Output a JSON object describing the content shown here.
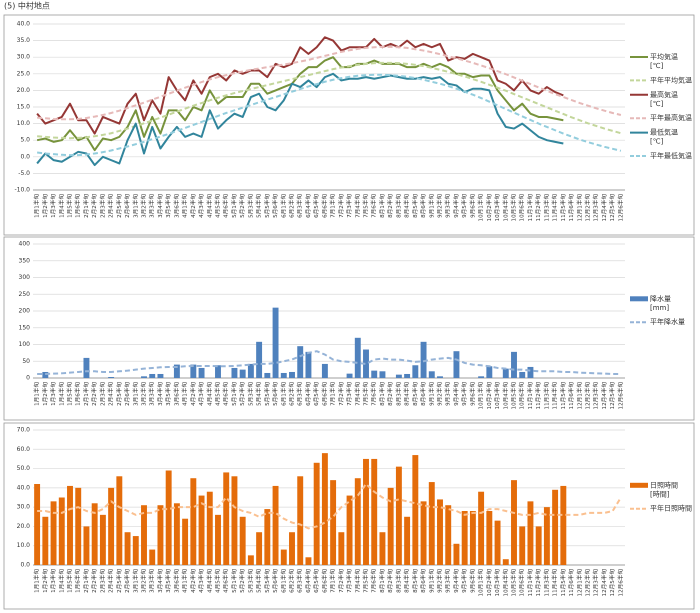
{
  "title": "(5) 中村地点",
  "chart_data": [
    {
      "type": "line",
      "categories": [
        "1月1半旬",
        "1月2半旬",
        "1月3半旬",
        "1月4半旬",
        "1月5半旬",
        "1月6半旬",
        "2月1半旬",
        "2月2半旬",
        "2月3半旬",
        "2月4半旬",
        "2月5半旬",
        "2月6半旬",
        "3月1半旬",
        "3月2半旬",
        "3月3半旬",
        "3月4半旬",
        "3月5半旬",
        "3月6半旬",
        "4月1半旬",
        "4月2半旬",
        "4月3半旬",
        "4月4半旬",
        "4月5半旬",
        "4月6半旬",
        "5月1半旬",
        "5月2半旬",
        "5月3半旬",
        "5月4半旬",
        "5月5半旬",
        "5月6半旬",
        "6月1半旬",
        "6月2半旬",
        "6月3半旬",
        "6月4半旬",
        "6月5半旬",
        "6月6半旬",
        "7月1半旬",
        "7月2半旬",
        "7月3半旬",
        "7月4半旬",
        "7月5半旬",
        "7月6半旬",
        "8月1半旬",
        "8月2半旬",
        "8月3半旬",
        "8月4半旬",
        "8月5半旬",
        "8月6半旬",
        "9月1半旬",
        "9月2半旬",
        "9月3半旬",
        "9月4半旬",
        "9月5半旬",
        "9月6半旬",
        "10月1半旬",
        "10月2半旬",
        "10月3半旬",
        "10月4半旬",
        "10月5半旬",
        "10月6半旬",
        "11月1半旬",
        "11月2半旬",
        "11月3半旬",
        "11月4半旬",
        "11月5半旬",
        "11月6半旬",
        "12月1半旬",
        "12月2半旬",
        "12月3半旬",
        "12月4半旬",
        "12月5半旬",
        "12月6半旬"
      ],
      "ylim": [
        -10,
        40
      ],
      "yticks": [
        {
          "value": -10,
          "label": "-10.0"
        },
        {
          "value": -5,
          "label": "-5.0"
        },
        {
          "value": 0,
          "label": "0.0"
        },
        {
          "value": 5,
          "label": "5.0"
        },
        {
          "value": 10,
          "label": "10.0"
        },
        {
          "value": 15,
          "label": "15.0"
        },
        {
          "value": 20,
          "label": "20.0"
        },
        {
          "value": 25,
          "label": "25.0"
        },
        {
          "value": 30,
          "label": "30.0"
        },
        {
          "value": 35,
          "label": "35.0"
        },
        {
          "value": 40,
          "label": "40.0"
        }
      ],
      "grid": true,
      "series": [
        {
          "name": "平均気温",
          "unit": "[℃]",
          "type": "line",
          "color": "#77933c",
          "dashed": false,
          "values": [
            5,
            5.5,
            4.5,
            5,
            8,
            5,
            6,
            2,
            5.5,
            5,
            6,
            9,
            14,
            6,
            12,
            7,
            14,
            14,
            11,
            15,
            14,
            20,
            16,
            18,
            18,
            18,
            22,
            22,
            19,
            20,
            21,
            22,
            25,
            27,
            27,
            29,
            30,
            27,
            27,
            28,
            28,
            29,
            28,
            28,
            28,
            27,
            27,
            28,
            27,
            28,
            27,
            25,
            25,
            24,
            24.5,
            24.5,
            20,
            17,
            14,
            16,
            13,
            12,
            12,
            11.5,
            11,
            null,
            null,
            null,
            null,
            null,
            null,
            null
          ]
        },
        {
          "name": "平年平均気温",
          "type": "line",
          "color": "#c3d69b",
          "dashed": true,
          "values": [
            6.2,
            6.0,
            5.8,
            5.7,
            5.6,
            5.7,
            5.9,
            6.2,
            6.6,
            7.1,
            7.8,
            8.5,
            9.3,
            10.1,
            10.9,
            11.8,
            12.7,
            13.6,
            14.5,
            15.4,
            16.2,
            17.0,
            17.8,
            18.5,
            19.2,
            19.8,
            20.4,
            21.0,
            21.6,
            22.2,
            22.8,
            23.4,
            24.0,
            24.6,
            25.2,
            25.8,
            26.4,
            26.9,
            27.3,
            27.7,
            28.0,
            28.2,
            28.3,
            28.3,
            28.2,
            28.0,
            27.7,
            27.3,
            26.8,
            26.2,
            25.6,
            24.9,
            24.2,
            23.4,
            22.6,
            21.7,
            20.8,
            19.9,
            18.9,
            17.9,
            16.9,
            15.9,
            14.9,
            13.9,
            12.9,
            11.9,
            11.0,
            10.1,
            9.3,
            8.5,
            7.8,
            7.1
          ]
        },
        {
          "name": "最高気温",
          "unit": "[℃]",
          "type": "line",
          "color": "#953735",
          "dashed": false,
          "values": [
            13,
            10,
            11,
            12,
            16,
            11,
            11,
            7,
            12,
            11,
            10,
            16,
            19,
            11,
            17,
            13,
            24,
            20,
            17,
            23,
            19,
            24,
            25,
            23,
            26,
            25,
            26,
            26,
            24,
            28,
            27,
            28,
            33,
            31,
            33,
            36,
            35,
            32,
            33,
            33,
            33,
            35.5,
            33,
            34,
            33,
            35,
            33,
            34,
            33,
            34,
            29,
            30,
            29.5,
            31,
            30,
            29,
            23,
            22,
            20,
            23,
            20,
            19,
            21,
            19.5,
            18.5,
            null,
            null,
            null,
            null,
            null,
            null,
            null
          ]
        },
        {
          "name": "平年最高気温",
          "type": "line",
          "color": "#e6b9b8",
          "dashed": true,
          "values": [
            11.8,
            11.6,
            11.4,
            11.3,
            11.3,
            11.4,
            11.7,
            12.1,
            12.6,
            13.2,
            13.9,
            14.7,
            15.5,
            16.3,
            17.2,
            18.1,
            19.0,
            19.9,
            20.8,
            21.7,
            22.5,
            23.3,
            24.0,
            24.6,
            25.2,
            25.7,
            26.2,
            26.6,
            27.0,
            27.4,
            27.8,
            28.2,
            28.7,
            29.2,
            29.8,
            30.4,
            31.0,
            31.6,
            32.1,
            32.5,
            32.8,
            33.0,
            33.1,
            33.1,
            33.0,
            32.8,
            32.4,
            32.0,
            31.5,
            30.9,
            30.3,
            29.7,
            29.0,
            28.3,
            27.5,
            26.7,
            25.8,
            24.9,
            23.9,
            22.9,
            21.9,
            20.9,
            19.9,
            18.9,
            18.0,
            17.1,
            16.2,
            15.4,
            14.6,
            13.9,
            13.2,
            12.6
          ]
        },
        {
          "name": "最低気温",
          "unit": "[℃]",
          "type": "line",
          "color": "#31859c",
          "dashed": false,
          "values": [
            -2,
            1,
            -1,
            -1.5,
            0,
            1.5,
            1,
            -2.5,
            0,
            -1,
            -2,
            5,
            10,
            1,
            9,
            2.5,
            6,
            9,
            6,
            7,
            6,
            14,
            8.5,
            11,
            13,
            12,
            18,
            19,
            15,
            14,
            17,
            22,
            21,
            23,
            21,
            24,
            25,
            23,
            23.5,
            23.5,
            24,
            23.5,
            24,
            24.5,
            24,
            23.5,
            23.5,
            24,
            23.5,
            24,
            22,
            21.5,
            19.5,
            20.5,
            20.5,
            20,
            13,
            9,
            8.5,
            10,
            8,
            6,
            5,
            4.5,
            4,
            null,
            null,
            null,
            null,
            null,
            null,
            null
          ]
        },
        {
          "name": "平年最低気温",
          "type": "line",
          "color": "#93cddd",
          "dashed": true,
          "values": [
            1.3,
            1.0,
            0.8,
            0.6,
            0.5,
            0.5,
            0.7,
            1.0,
            1.4,
            1.9,
            2.5,
            3.1,
            3.8,
            4.5,
            5.3,
            6.1,
            6.9,
            7.8,
            8.7,
            9.6,
            10.5,
            11.4,
            12.3,
            13.2,
            14.0,
            14.8,
            15.6,
            16.4,
            17.2,
            18.0,
            18.8,
            19.6,
            20.4,
            21.2,
            21.9,
            22.6,
            23.2,
            23.7,
            24.1,
            24.4,
            24.6,
            24.7,
            24.7,
            24.6,
            24.4,
            24.1,
            23.7,
            23.2,
            22.6,
            22.0,
            21.3,
            20.5,
            19.6,
            18.7,
            17.7,
            16.6,
            15.5,
            14.4,
            13.3,
            12.2,
            11.1,
            10.0,
            9.0,
            8.0,
            7.0,
            6.1,
            5.2,
            4.4,
            3.7,
            3.0,
            2.4,
            1.8
          ]
        }
      ]
    },
    {
      "type": "combo",
      "categories": [
        "1月1半旬",
        "1月2半旬",
        "1月3半旬",
        "1月4半旬",
        "1月5半旬",
        "1月6半旬",
        "2月1半旬",
        "2月2半旬",
        "2月3半旬",
        "2月4半旬",
        "2月5半旬",
        "2月6半旬",
        "3月1半旬",
        "3月2半旬",
        "3月3半旬",
        "3月4半旬",
        "3月5半旬",
        "3月6半旬",
        "4月1半旬",
        "4月2半旬",
        "4月3半旬",
        "4月4半旬",
        "4月5半旬",
        "4月6半旬",
        "5月1半旬",
        "5月2半旬",
        "5月3半旬",
        "5月4半旬",
        "5月5半旬",
        "5月6半旬",
        "6月1半旬",
        "6月2半旬",
        "6月3半旬",
        "6月4半旬",
        "6月5半旬",
        "6月6半旬",
        "7月1半旬",
        "7月2半旬",
        "7月3半旬",
        "7月4半旬",
        "7月5半旬",
        "7月6半旬",
        "8月1半旬",
        "8月2半旬",
        "8月3半旬",
        "8月4半旬",
        "8月5半旬",
        "8月6半旬",
        "9月1半旬",
        "9月2半旬",
        "9月3半旬",
        "9月4半旬",
        "9月5半旬",
        "9月6半旬",
        "10月1半旬",
        "10月2半旬",
        "10月3半旬",
        "10月4半旬",
        "10月5半旬",
        "10月6半旬",
        "11月1半旬",
        "11月2半旬",
        "11月3半旬",
        "11月4半旬",
        "11月5半旬",
        "11月6半旬",
        "12月1半旬",
        "12月2半旬",
        "12月3半旬",
        "12月4半旬",
        "12月5半旬",
        "12月6半旬"
      ],
      "ylim": [
        0,
        400
      ],
      "yticks": [
        0,
        50,
        100,
        150,
        200,
        250,
        300,
        350,
        400
      ],
      "grid": true,
      "series": [
        {
          "name": "降水量",
          "unit": "[mm]",
          "type": "bar",
          "color": "#4f81bd",
          "values": [
            0,
            18,
            0,
            0,
            0,
            0,
            60,
            0,
            0,
            3,
            0,
            0,
            0,
            5,
            12,
            12,
            0,
            40,
            0,
            40,
            30,
            0,
            38,
            0,
            30,
            25,
            42,
            108,
            15,
            210,
            15,
            18,
            95,
            78,
            0,
            42,
            0,
            0,
            13,
            120,
            85,
            22,
            20,
            0,
            10,
            12,
            38,
            108,
            20,
            5,
            0,
            80,
            0,
            0,
            5,
            35,
            0,
            28,
            78,
            18,
            33,
            0,
            0,
            0,
            0,
            null,
            null,
            null,
            null,
            null,
            null,
            null
          ]
        },
        {
          "name": "平年降水量",
          "type": "line",
          "color": "#95b3d7",
          "dashed": true,
          "values": [
            12,
            12,
            13,
            14,
            16,
            18,
            20,
            20,
            18,
            18,
            20,
            22,
            25,
            28,
            30,
            32,
            33,
            33,
            35,
            36,
            36,
            36,
            35,
            35,
            36,
            38,
            40,
            42,
            42,
            45,
            50,
            55,
            65,
            75,
            80,
            70,
            55,
            50,
            48,
            45,
            42,
            55,
            58,
            55,
            55,
            52,
            48,
            50,
            55,
            58,
            60,
            55,
            45,
            40,
            38,
            35,
            30,
            28,
            25,
            25,
            22,
            20,
            20,
            20,
            18,
            18,
            16,
            15,
            14,
            13,
            12,
            12
          ]
        }
      ]
    },
    {
      "type": "combo",
      "categories": [
        "1月1半旬",
        "1月2半旬",
        "1月3半旬",
        "1月4半旬",
        "1月5半旬",
        "1月6半旬",
        "2月1半旬",
        "2月2半旬",
        "2月3半旬",
        "2月4半旬",
        "2月5半旬",
        "2月6半旬",
        "3月1半旬",
        "3月2半旬",
        "3月3半旬",
        "3月4半旬",
        "3月5半旬",
        "3月6半旬",
        "4月1半旬",
        "4月2半旬",
        "4月3半旬",
        "4月4半旬",
        "4月5半旬",
        "4月6半旬",
        "5月1半旬",
        "5月2半旬",
        "5月3半旬",
        "5月4半旬",
        "5月5半旬",
        "5月6半旬",
        "6月1半旬",
        "6月2半旬",
        "6月3半旬",
        "6月4半旬",
        "6月5半旬",
        "6月6半旬",
        "7月1半旬",
        "7月2半旬",
        "7月3半旬",
        "7月4半旬",
        "7月5半旬",
        "7月6半旬",
        "8月1半旬",
        "8月2半旬",
        "8月3半旬",
        "8月4半旬",
        "8月5半旬",
        "8月6半旬",
        "9月1半旬",
        "9月2半旬",
        "9月3半旬",
        "9月4半旬",
        "9月5半旬",
        "9月6半旬",
        "10月1半旬",
        "10月2半旬",
        "10月3半旬",
        "10月4半旬",
        "10月5半旬",
        "10月6半旬",
        "11月1半旬",
        "11月2半旬",
        "11月3半旬",
        "11月4半旬",
        "11月5半旬",
        "11月6半旬",
        "12月1半旬",
        "12月2半旬",
        "12月3半旬",
        "12月4半旬",
        "12月5半旬",
        "12月6半旬"
      ],
      "ylim": [
        0,
        70
      ],
      "yticks": [
        {
          "value": 0,
          "label": "0.0"
        },
        {
          "value": 10,
          "label": "10.0"
        },
        {
          "value": 20,
          "label": "20.0"
        },
        {
          "value": 30,
          "label": "30.0"
        },
        {
          "value": 40,
          "label": "40.0"
        },
        {
          "value": 50,
          "label": "50.0"
        },
        {
          "value": 60,
          "label": "60.0"
        },
        {
          "value": 70,
          "label": "70.0"
        }
      ],
      "grid": true,
      "series": [
        {
          "name": "日照時間",
          "unit": "[時間]",
          "type": "bar",
          "color": "#e46c0a",
          "values": [
            42,
            25,
            33,
            35,
            41,
            40,
            20,
            32,
            26,
            40,
            46,
            17,
            15,
            31,
            8,
            31,
            49,
            32,
            24,
            45,
            36,
            38,
            26,
            48,
            46,
            25,
            5,
            17,
            29,
            41,
            8,
            17,
            46,
            4,
            53,
            58,
            44,
            17,
            36,
            45,
            55,
            55,
            17,
            40,
            51,
            25,
            57,
            33,
            43,
            34,
            31,
            11,
            28,
            28,
            38,
            28,
            23,
            3,
            44,
            20,
            33,
            20,
            30,
            39,
            41,
            null,
            null,
            null,
            null,
            null,
            null,
            null
          ]
        },
        {
          "name": "平年日照時間",
          "type": "line",
          "color": "#fac090",
          "dashed": true,
          "values": [
            28,
            28,
            27,
            27,
            29,
            30,
            28,
            27,
            29,
            33,
            30,
            28,
            26,
            27,
            27,
            29,
            29,
            30,
            30,
            30,
            32,
            30,
            30,
            35,
            30,
            28,
            27,
            25,
            27,
            27,
            24,
            22,
            21,
            19,
            20,
            22,
            25,
            30,
            33,
            36,
            42,
            38,
            35,
            33,
            34,
            33,
            32,
            31,
            30,
            30,
            29,
            28,
            26,
            27,
            27,
            29,
            29,
            28,
            27,
            26,
            26,
            27,
            26,
            26,
            26,
            26,
            26,
            27,
            27,
            27,
            28,
            35
          ]
        }
      ]
    }
  ]
}
